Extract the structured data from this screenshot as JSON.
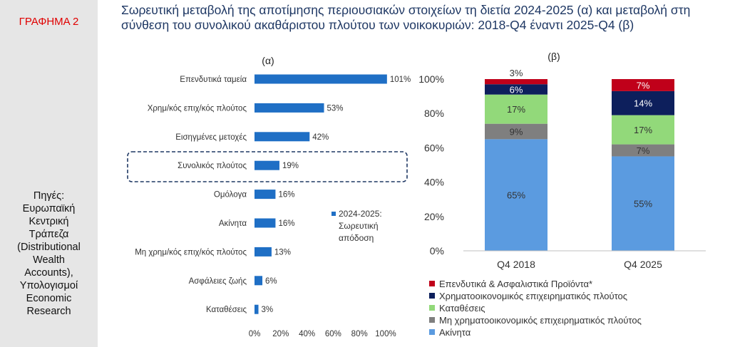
{
  "figure_label": "ΓΡΑΦΗΜΑ 2",
  "sources": [
    "Πηγές:",
    "Ευρωπαϊκή",
    "Κεντρική",
    "Τράπεζα",
    "(Distributional",
    "Wealth",
    "Accounts),",
    "Υπολογισμοί",
    "Economic",
    "Research"
  ],
  "title_lines": [
    "Σωρευτική μεταβολή της αποτίμησης περιουσιακών στοιχείων τη διετία 2024-2025 (α) και μεταβολή στη",
    "σύνθεση του συνολικού ακαθάριστου πλούτου των νοικοκυριών: 2018-Q4 έναντι 2025-Q4 (β)"
  ],
  "colors": {
    "bar_a": "#1f6fc5",
    "highlight_box": "#1f3864",
    "title": "#1f3864",
    "fig_label": "#e00000",
    "sidebar_bg": "#e6e6e6"
  },
  "chart_data": [
    {
      "type": "bar",
      "orientation": "horizontal",
      "panel_label": "(α)",
      "categories": [
        "Επενδυτικά ταμεία",
        "Χρημ/κός επιχ/κός πλούτος",
        "Εισηγμένες μετοχές",
        "Συνολικός πλούτος",
        "Ομόλογα",
        "Ακίνητα",
        "Μη χρημ/κός επιχ/κός πλούτος",
        "Ασφάλειες ζωής",
        "Καταθέσεις"
      ],
      "series": [
        {
          "name": "2024-2025: Σωρευτική απόδοση",
          "values": [
            101,
            53,
            42,
            19,
            16,
            16,
            13,
            6,
            3
          ]
        }
      ],
      "data_labels": [
        "101%",
        "53%",
        "42%",
        "19%",
        "16%",
        "16%",
        "13%",
        "6%",
        "3%"
      ],
      "x_ticks": [
        "0%",
        "20%",
        "40%",
        "60%",
        "80%",
        "100%"
      ],
      "xlim": [
        0,
        100
      ],
      "legend_lines": [
        "2024-2025:",
        "Σωρευτική",
        "απόδοση"
      ],
      "legend_position": "right",
      "highlighted_category": "Συνολικός πλούτος",
      "grid": false
    },
    {
      "type": "bar",
      "stacked": true,
      "panel_label": "(β)",
      "categories": [
        "Q4 2018",
        "Q4 2025"
      ],
      "series": [
        {
          "name": "Ακίνητα",
          "color": "#5b9be0",
          "values": [
            65,
            55
          ],
          "labels": [
            "65%",
            "55%"
          ]
        },
        {
          "name": "Μη χρηματοοικονομικός επιχειρηματικός πλούτος",
          "color": "#7f7f7f",
          "values": [
            9,
            7
          ],
          "labels": [
            "9%",
            "7%"
          ]
        },
        {
          "name": "Καταθέσεις",
          "color": "#92d97a",
          "values": [
            17,
            17
          ],
          "labels": [
            "17%",
            "17%"
          ]
        },
        {
          "name": "Χρηματοοικονομικός επιχειρηματικός πλούτος",
          "color": "#0d1f5c",
          "values": [
            6,
            14
          ],
          "labels": [
            "6%",
            "14%"
          ]
        },
        {
          "name": "Επενδυτικά & Ασφαλιστικά Προϊόντα*",
          "color": "#c0001a",
          "values": [
            3,
            7
          ],
          "labels": [
            "3%",
            "7%"
          ]
        }
      ],
      "y_ticks": [
        "0%",
        "20%",
        "40%",
        "60%",
        "80%",
        "100%"
      ],
      "ylim": [
        0,
        100
      ],
      "legend_order": [
        "Επενδυτικά & Ασφαλιστικά Προϊόντα*",
        "Χρηματοοικονομικός επιχειρηματικός πλούτος",
        "Καταθέσεις",
        "Μη χρηματοοικονομικός επιχειρηματικός πλούτος",
        "Ακίνητα"
      ],
      "legend_position": "bottom",
      "grid": false
    }
  ]
}
